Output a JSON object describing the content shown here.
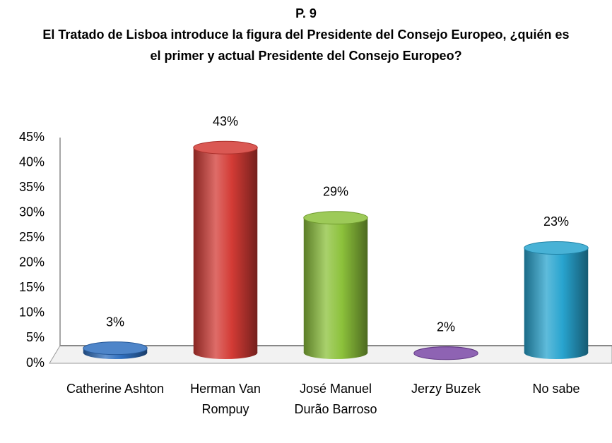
{
  "chart_data": {
    "type": "bar",
    "title": "P. 9",
    "subtitle": "El Tratado de Lisboa introduce la figura del Presidente del Consejo Europeo, ¿quién es el primer y actual Presidente del Consejo Europeo?",
    "categories": [
      "Catherine Ashton",
      "Herman Van Rompuy",
      "José  Manuel Durão Barroso",
      "Jerzy Buzek",
      "No sabe"
    ],
    "values": [
      3,
      43,
      29,
      2,
      23
    ],
    "value_labels": [
      "3%",
      "43%",
      "29%",
      "2%",
      "23%"
    ],
    "colors": [
      "#2f6fbf",
      "#d33b35",
      "#8cc13b",
      "#7a47a6",
      "#28a4cf"
    ],
    "ylim": [
      0,
      45
    ],
    "yticks": [
      {
        "value": 0,
        "label": "0%"
      },
      {
        "value": 5,
        "label": "5%"
      },
      {
        "value": 10,
        "label": "10%"
      },
      {
        "value": 15,
        "label": "15%"
      },
      {
        "value": 20,
        "label": "20%"
      },
      {
        "value": 25,
        "label": "25%"
      },
      {
        "value": 30,
        "label": "30%"
      },
      {
        "value": 35,
        "label": "35%"
      },
      {
        "value": 40,
        "label": "40%"
      },
      {
        "value": 45,
        "label": "45%"
      }
    ],
    "grid": false
  }
}
